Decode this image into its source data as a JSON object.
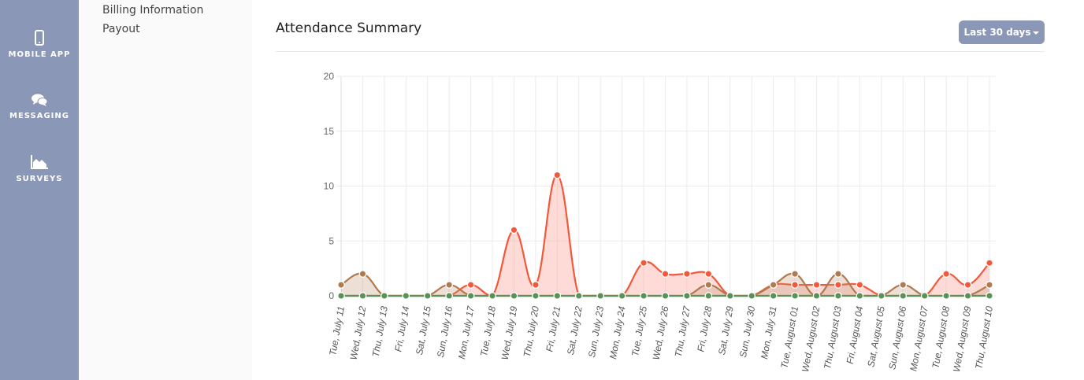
{
  "sidebar": {
    "items": [
      {
        "label": "MOBILE APP",
        "icon": "mobile-phone-icon"
      },
      {
        "label": "MESSAGING",
        "icon": "chat-bubbles-icon"
      },
      {
        "label": "SURVEYS",
        "icon": "area-chart-icon"
      }
    ]
  },
  "subnav": {
    "items": [
      {
        "label": "Billing Information"
      },
      {
        "label": "Payout"
      }
    ]
  },
  "panel": {
    "title": "Attendance Summary",
    "range_button": "Last 30 days",
    "range_icon": "caret-down-icon"
  },
  "colors": {
    "sidebar_bg": "#8a97b6",
    "series_red": "#f4583a",
    "series_brown": "#b07a4f",
    "series_green": "#5a9156"
  },
  "chart_data": {
    "type": "area",
    "title": "Attendance Summary",
    "xlabel": "",
    "ylabel": "",
    "ylim": [
      0,
      20
    ],
    "yticks": [
      0,
      5,
      10,
      15,
      20
    ],
    "grid": true,
    "legend": "none",
    "categories": [
      "Tue, July 11",
      "Wed, July 12",
      "Thu, July 13",
      "Fri, July 14",
      "Sat, July 15",
      "Sun, July 16",
      "Mon, July 17",
      "Tue, July 18",
      "Wed, July 19",
      "Thu, July 20",
      "Fri, July 21",
      "Sat, July 22",
      "Sun, July 23",
      "Mon, July 24",
      "Tue, July 25",
      "Wed, July 26",
      "Thu, July 27",
      "Fri, July 28",
      "Sat, July 29",
      "Sun, July 30",
      "Mon, July 31",
      "Tue, August 01",
      "Wed, August 02",
      "Thu, August 03",
      "Fri, August 04",
      "Sat, August 05",
      "Sun, August 06",
      "Mon, August 07",
      "Tue, August 08",
      "Wed, August 09",
      "Thu, August 10"
    ],
    "series": [
      {
        "name": "red",
        "color": "#f4583a",
        "fill": "rgba(255,160,150,0.38)",
        "values": [
          0,
          0,
          0,
          0,
          0,
          0,
          1,
          0,
          6,
          1,
          11,
          0,
          0,
          0,
          3,
          2,
          2,
          2,
          0,
          0,
          1,
          1,
          1,
          1,
          1,
          0,
          0,
          0,
          2,
          1,
          3
        ]
      },
      {
        "name": "brown",
        "color": "#b07a4f",
        "fill": "rgba(190,150,120,0.3)",
        "values": [
          1,
          2,
          0,
          0,
          0,
          1,
          0,
          0,
          0,
          0,
          0,
          0,
          0,
          0,
          0,
          0,
          0,
          1,
          0,
          0,
          1,
          2,
          0,
          2,
          0,
          0,
          1,
          0,
          0,
          0,
          1
        ]
      },
      {
        "name": "green",
        "color": "#5a9156",
        "fill": "rgba(90,145,86,0.2)",
        "values": [
          0,
          0,
          0,
          0,
          0,
          0,
          0,
          0,
          0,
          0,
          0,
          0,
          0,
          0,
          0,
          0,
          0,
          0,
          0,
          0,
          0,
          0,
          0,
          0,
          0,
          0,
          0,
          0,
          0,
          0,
          0
        ]
      }
    ]
  }
}
